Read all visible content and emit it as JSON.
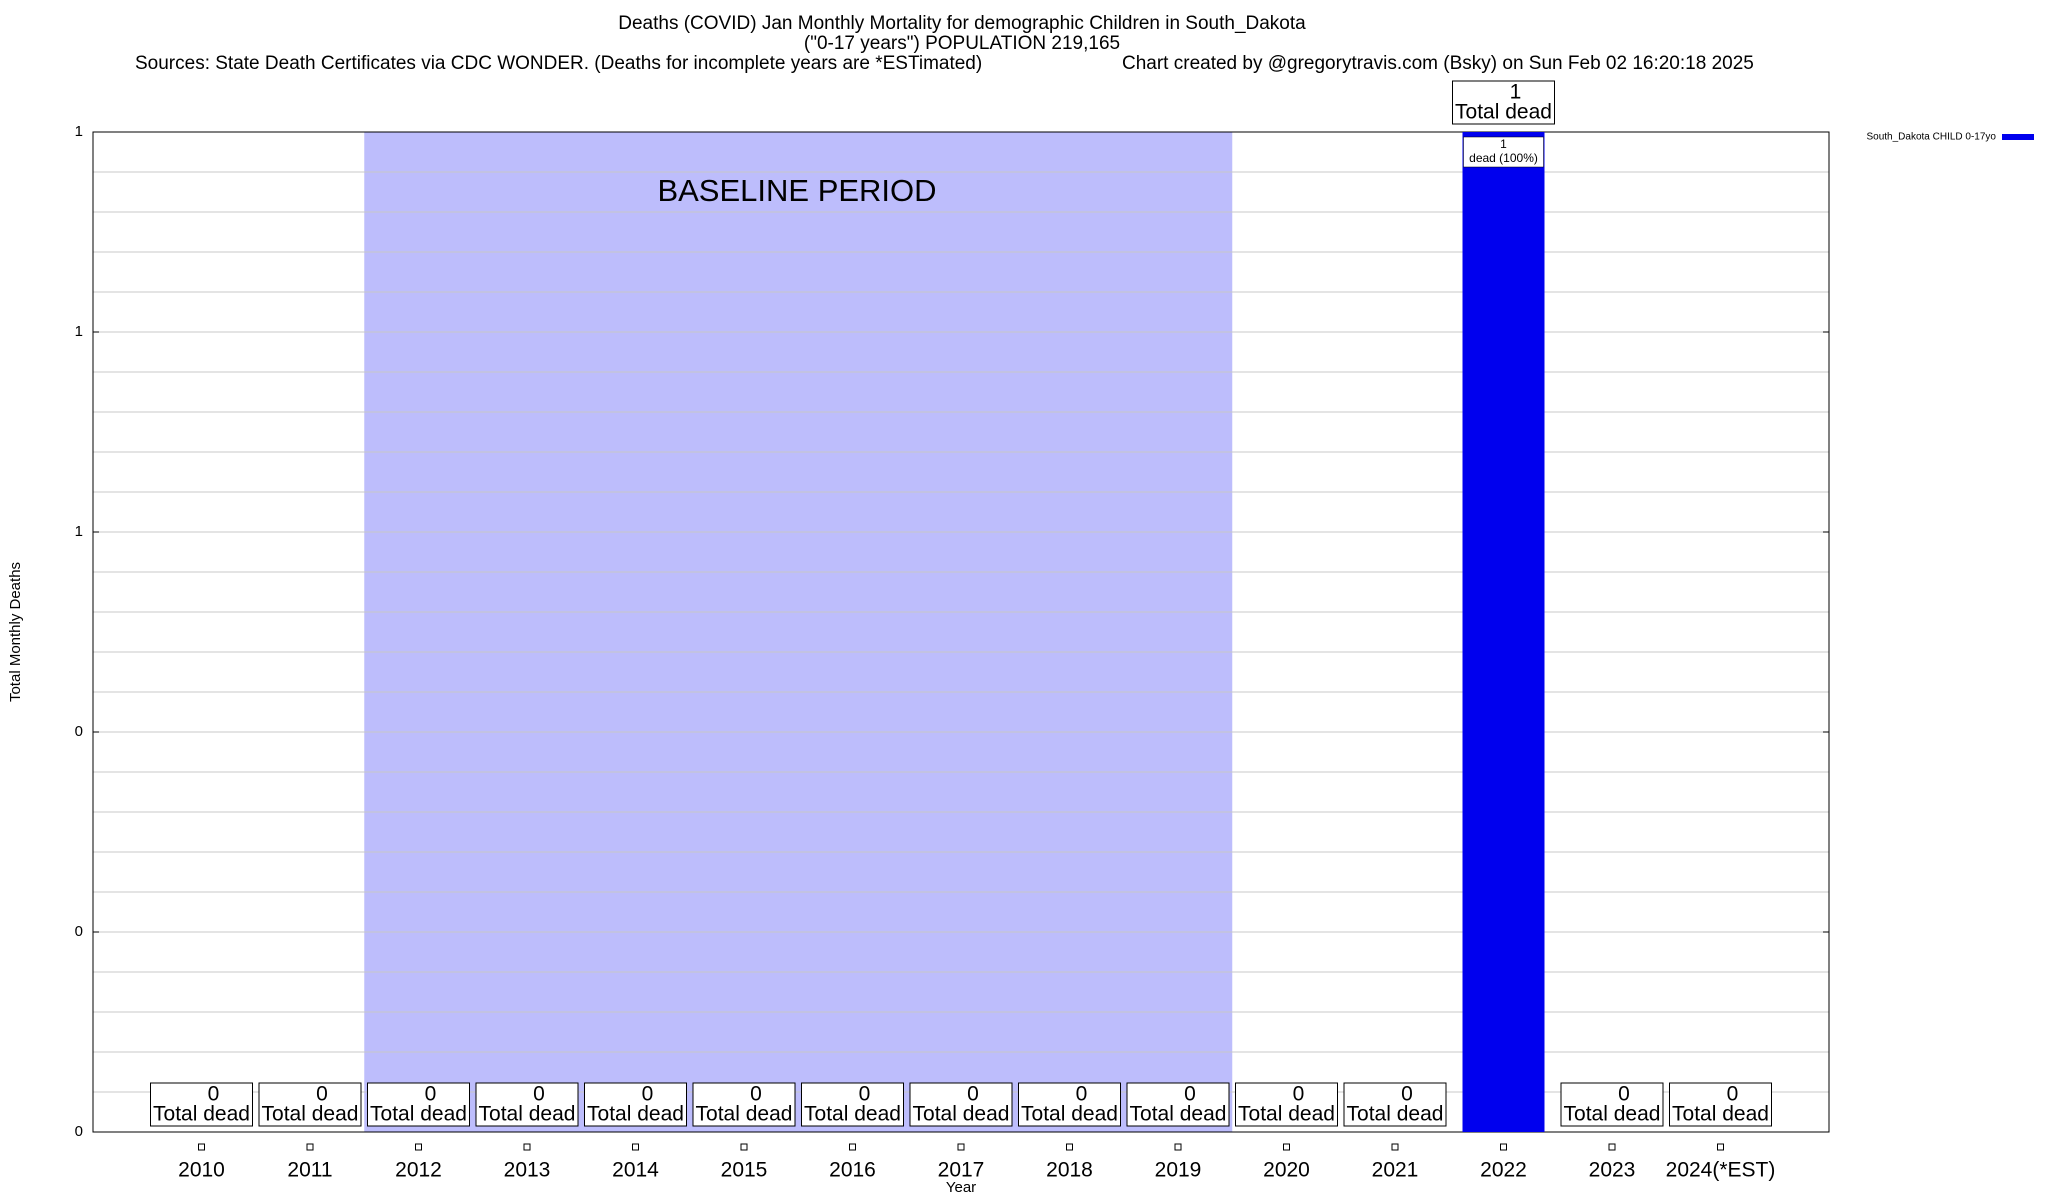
{
  "chart_data": {
    "type": "bar",
    "title": "Deaths (COVID) Jan Monthly Mortality for demographic Children in South_Dakota",
    "subtitle": "(\"0-17 years\") POPULATION 219,165",
    "sources": "Sources: State Death Certificates via CDC WONDER. (Deaths for incomplete years are *ESTimated)",
    "credit": "Chart created by @gregorytravis.com (Bsky) on Sun Feb 02 16:20:18 2025",
    "xlabel": "Year",
    "ylabel": "Total Monthly Deaths",
    "categories": [
      "2010",
      "2011",
      "2012",
      "2013",
      "2014",
      "2015",
      "2016",
      "2017",
      "2018",
      "2019",
      "2020",
      "2021",
      "2022",
      "2023",
      "2024(*EST)"
    ],
    "series": [
      {
        "name": "South_Dakota CHILD 0-17yo",
        "color": "#0000ee",
        "values": [
          0,
          0,
          0,
          0,
          0,
          0,
          0,
          0,
          0,
          0,
          0,
          0,
          1,
          0,
          0
        ]
      }
    ],
    "total_label": "Total dead",
    "bar_inner_label": "dead (100%)",
    "baseline": {
      "label": "BASELINE PERIOD",
      "start": "2012",
      "end": "2019",
      "color": "#bdbdfc"
    },
    "ylim": [
      0,
      1
    ],
    "yticks": [
      {
        "value": 0,
        "label": "0"
      },
      {
        "value": 0.2,
        "label": "0"
      },
      {
        "value": 0.4,
        "label": "0"
      },
      {
        "value": 0.6,
        "label": "1"
      },
      {
        "value": 0.8,
        "label": "1"
      },
      {
        "value": 1,
        "label": "1"
      }
    ],
    "yminorticks": [
      0.04,
      0.08,
      0.12,
      0.16,
      0.24,
      0.28,
      0.32,
      0.36,
      0.44,
      0.48,
      0.52,
      0.56,
      0.64,
      0.68,
      0.72,
      0.76,
      0.84,
      0.88,
      0.92,
      0.96
    ],
    "grid": true,
    "legend": "top-right"
  }
}
